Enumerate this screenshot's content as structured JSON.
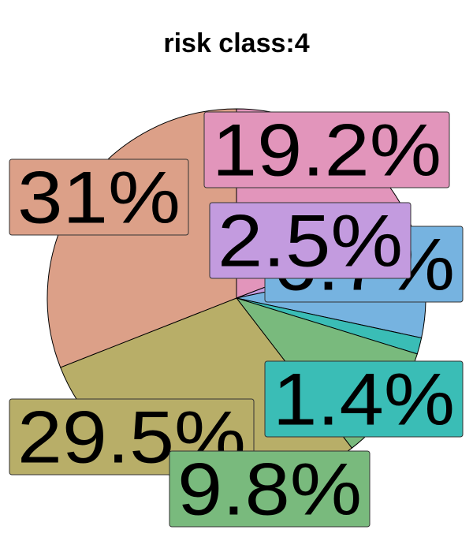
{
  "chart_data": {
    "type": "pie",
    "title": "risk class:4",
    "slices": [
      {
        "label": "19.2%",
        "value": 19.2,
        "color": "#E295BB"
      },
      {
        "label": "2.5%",
        "value": 2.5,
        "color": "#C39BDF"
      },
      {
        "label": "6.7%",
        "value": 6.7,
        "color": "#76B3E0"
      },
      {
        "label": "1.4%",
        "value": 1.4,
        "color": "#3ABDB6"
      },
      {
        "label": "9.8%",
        "value": 9.8,
        "color": "#79BA7D"
      },
      {
        "label": "29.5%",
        "value": 29.5,
        "color": "#B8AE68"
      },
      {
        "label": "31%",
        "value": 31.0,
        "color": "#DCA088"
      }
    ],
    "start_angle_degrees": 0,
    "direction": "clockwise",
    "legend": "none"
  }
}
